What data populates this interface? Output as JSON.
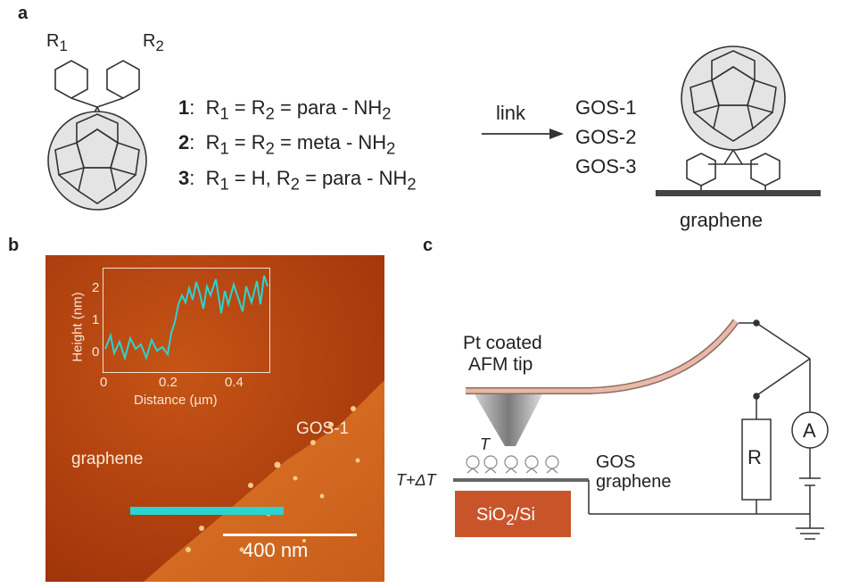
{
  "panels": {
    "a": "a",
    "b": "b",
    "c": "c"
  },
  "panel_a": {
    "r1": "R",
    "r1_sub": "1",
    "r2": "R",
    "r2_sub": "2",
    "compounds": [
      {
        "num": "1",
        "text_pre": "R",
        "s1": "1",
        "mid": " =   R",
        "s2": "2",
        "post": "  = para - NH",
        "s3": "2"
      },
      {
        "num": "2",
        "text_pre": "R",
        "s1": "1",
        "mid": " =   R",
        "s2": "2",
        "post": "  = meta - NH",
        "s3": "2"
      },
      {
        "num": "3",
        "text_pre": "R",
        "s1": "1",
        "mid": " = H, R",
        "s2": "2",
        "post": " = para - NH",
        "s3": "2"
      }
    ],
    "arrow_label": "link",
    "products": [
      "GOS-1",
      "GOS-2",
      "GOS-3"
    ],
    "substrate_label": "graphene"
  },
  "panel_b": {
    "region_left": "graphene",
    "region_right": "GOS-1",
    "scale_bar": "400 nm",
    "inset": {
      "xlabel": "Distance (µm)",
      "ylabel": "Height (nm)",
      "xticks": [
        "0",
        "0.2",
        "0.4"
      ],
      "yticks": [
        "0",
        "1",
        "2"
      ],
      "line_color": "#2ad4d0"
    }
  },
  "panel_c": {
    "tip_label_line1": "Pt coated",
    "tip_label_line2": "AFM tip",
    "T": "T",
    "T_dT": "T+ΔT",
    "gos_label": "GOS",
    "graphene_label": "graphene",
    "substrate": "SiO",
    "substrate_sub": "2",
    "substrate_post": "/Si",
    "resistor": "R",
    "ammeter": "A"
  },
  "colors": {
    "afm_bg": "#b8430e",
    "profile": "#2ad4d0",
    "cantilever": "#e8b9a8",
    "substrate": "#c8552a"
  }
}
